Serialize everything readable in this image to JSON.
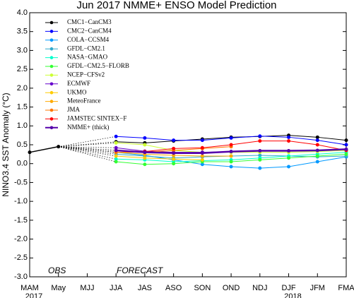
{
  "chart_data": {
    "type": "line",
    "title": "Jun 2017 NMME+ ENSO Model Prediction",
    "y_label": "NINO3.4 SST Anomaly (°C)",
    "categories": [
      "MAM",
      "May",
      "MJJ",
      "JJA",
      "JAS",
      "ASO",
      "SON",
      "OND",
      "NDJ",
      "DJF",
      "JFM",
      "FMA"
    ],
    "year_labels": [
      {
        "category": "MAM",
        "label": "2017"
      },
      {
        "category": "DJF",
        "label": "2018"
      }
    ],
    "annotations": [
      "OBS",
      "FORECAST"
    ],
    "ylim": [
      -3,
      4
    ],
    "yticks": [
      {
        "value": -3,
        "label": "-3.0"
      },
      -2.5,
      {
        "value": -2,
        "label": "-2.0"
      },
      -1.5,
      {
        "value": -1,
        "label": "-1.0"
      },
      -0.5,
      {
        "value": 0,
        "label": "0.0"
      },
      0.5,
      {
        "value": 1,
        "label": "1.0"
      },
      1.5,
      {
        "value": 2,
        "label": "2.0"
      },
      2.5,
      {
        "value": 3,
        "label": "3.0"
      },
      3.5,
      {
        "value": 4,
        "label": "4.0"
      }
    ],
    "obs_color": "#000000",
    "obs_values": [
      0.3,
      0.45,
      null,
      null,
      null,
      null,
      null,
      null,
      null,
      null,
      null,
      null
    ],
    "series": [
      {
        "name": "CMC1−CanCM3",
        "color": "#000000",
        "values": [
          null,
          null,
          null,
          0.58,
          0.55,
          0.6,
          0.65,
          0.7,
          0.72,
          0.75,
          0.7,
          0.62
        ]
      },
      {
        "name": "CMC2−CanCM4",
        "color": "#0000ff",
        "values": [
          null,
          null,
          null,
          0.72,
          0.68,
          0.62,
          0.62,
          0.68,
          0.73,
          0.7,
          0.62,
          0.5
        ]
      },
      {
        "name": "COLA−CCSM4",
        "color": "#0099ff",
        "values": [
          null,
          null,
          null,
          0.3,
          0.22,
          0.1,
          -0.02,
          -0.08,
          -0.12,
          -0.08,
          0.05,
          0.18
        ]
      },
      {
        "name": "GFDL−CM2.1",
        "color": "#33aacc",
        "values": [
          null,
          null,
          null,
          0.25,
          0.2,
          0.15,
          0.18,
          0.2,
          0.22,
          0.2,
          0.18,
          0.2
        ]
      },
      {
        "name": "NASA−GMAO",
        "color": "#00ffcc",
        "values": [
          null,
          null,
          null,
          0.12,
          0.1,
          0.05,
          0.08,
          0.1,
          0.15,
          0.2,
          0.25,
          0.3
        ]
      },
      {
        "name": "GFDL−CM2.5−FLORB",
        "color": "#33ff33",
        "values": [
          null,
          null,
          null,
          0.05,
          -0.02,
          0.0,
          0.05,
          0.05,
          0.1,
          0.15,
          0.2,
          0.25
        ]
      },
      {
        "name": "NCEP−CFSv2",
        "color": "#ccff33",
        "values": [
          null,
          null,
          null,
          0.55,
          0.5,
          0.35,
          0.3,
          0.3,
          0.3,
          0.3,
          0.32,
          0.35
        ]
      },
      {
        "name": "ECMWF",
        "color": "#6600cc",
        "values": [
          null,
          null,
          null,
          0.42,
          0.33,
          0.3,
          0.3,
          0.32,
          null,
          null,
          null,
          null
        ]
      },
      {
        "name": "UKMO",
        "color": "#ffcc00",
        "values": [
          null,
          null,
          null,
          0.2,
          0.15,
          0.12,
          0.1,
          null,
          null,
          null,
          null,
          null
        ]
      },
      {
        "name": "MeteoFrance",
        "color": "#ffaa00",
        "values": [
          null,
          null,
          null,
          0.3,
          0.25,
          0.22,
          0.2,
          0.2,
          null,
          null,
          null,
          null
        ]
      },
      {
        "name": "JMA",
        "color": "#ff7700",
        "values": [
          null,
          null,
          null,
          0.3,
          0.3,
          0.35,
          0.4,
          0.45,
          null,
          null,
          null,
          null
        ]
      },
      {
        "name": "JAMSTEC SINTEX−F",
        "color": "#ff0000",
        "values": [
          null,
          null,
          null,
          0.35,
          0.32,
          0.4,
          0.42,
          0.5,
          0.6,
          0.6,
          0.5,
          0.35
        ]
      },
      {
        "name": "NMME+ (thick)",
        "color": "#5500aa",
        "thick": true,
        "values": [
          null,
          null,
          null,
          0.35,
          0.3,
          0.28,
          0.28,
          0.32,
          0.34,
          0.34,
          0.35,
          0.38
        ]
      }
    ]
  }
}
